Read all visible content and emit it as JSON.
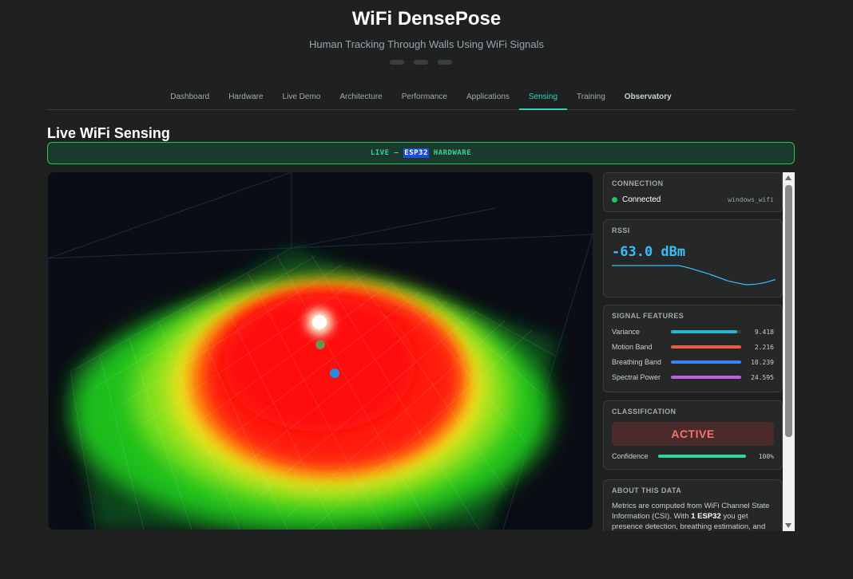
{
  "header": {
    "title": "WiFi DensePose",
    "subtitle": "Human Tracking Through Walls Using WiFi Signals"
  },
  "nav": {
    "items": [
      {
        "label": "Dashboard"
      },
      {
        "label": "Hardware"
      },
      {
        "label": "Live Demo"
      },
      {
        "label": "Architecture"
      },
      {
        "label": "Performance"
      },
      {
        "label": "Applications"
      },
      {
        "label": "Sensing",
        "active": true
      },
      {
        "label": "Training"
      },
      {
        "label": "Observatory"
      }
    ]
  },
  "section_title": "Live WiFi Sensing",
  "banner": {
    "prefix": "LIVE — ",
    "highlight": "ESP32",
    "suffix": " HARDWARE"
  },
  "colors": {
    "accent": "#2dd4bf",
    "live_green": "#34d399",
    "rssi": "#38bdf8",
    "active_red": "#f87171"
  },
  "connection": {
    "title": "CONNECTION",
    "status": "Connected",
    "source": "windows_wifi"
  },
  "rssi": {
    "title": "RSSI",
    "value": "-63.0 dBm",
    "sparkline": [
      -60.6,
      -60.6,
      -60.6,
      -60.6,
      -60.6,
      -60.6,
      -60.6,
      -60.6,
      -61.0,
      -61.5,
      -62.0,
      -62.6,
      -63.2,
      -63.6,
      -63.9,
      -63.8,
      -63.5,
      -63.0
    ]
  },
  "features": {
    "title": "SIGNAL FEATURES",
    "items": [
      {
        "label": "Variance",
        "value": "9.418",
        "fill": 0.94,
        "color": "#22b8cf"
      },
      {
        "label": "Motion Band",
        "value": "2.216",
        "fill": 1.0,
        "color": "#f05a3c"
      },
      {
        "label": "Breathing Band",
        "value": "10.239",
        "fill": 1.0,
        "color": "#3b82f6"
      },
      {
        "label": "Spectral Power",
        "value": "24.595",
        "fill": 1.0,
        "color": "#c05fe0"
      }
    ]
  },
  "classification": {
    "title": "CLASSIFICATION",
    "label": "ACTIVE",
    "confidence_label": "Confidence",
    "confidence_value": "100%",
    "confidence": 1.0
  },
  "about": {
    "title": "ABOUT THIS DATA",
    "text_before": "Metrics are computed from WiFi Channel State Information (CSI). With ",
    "text_bold": "1 ESP32",
    "text_after": " you get presence detection, breathing estimation, and"
  }
}
